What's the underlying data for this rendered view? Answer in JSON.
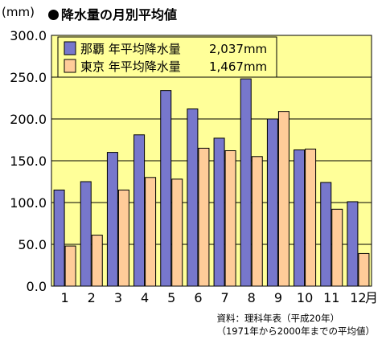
{
  "header": {
    "unit": "(mm)",
    "title": "降水量の月別平均値"
  },
  "chart_data": {
    "type": "bar",
    "categories": [
      "1",
      "2",
      "3",
      "4",
      "5",
      "6",
      "7",
      "8",
      "9",
      "10",
      "11",
      "12"
    ],
    "x_unit": "月",
    "series": [
      {
        "name": "那覇 年平均降水量",
        "total": "2,037mm",
        "color": "#7777cc",
        "values": [
          115,
          125,
          160,
          181,
          234,
          212,
          177,
          248,
          200,
          163,
          124,
          101
        ]
      },
      {
        "name": "東京 年平均降水量",
        "total": "1,467mm",
        "color": "#ffcc99",
        "values": [
          48,
          61,
          115,
          130,
          128,
          165,
          162,
          155,
          209,
          164,
          92,
          39
        ]
      }
    ],
    "ylim": [
      0,
      300
    ],
    "yticks": [
      "0.0",
      "50.0",
      "100.0",
      "150.0",
      "200.0",
      "250.0",
      "300.0"
    ],
    "plot_background": "#ffff99",
    "grid": "horizontal",
    "legend_position": "top-left"
  },
  "source": {
    "line1": "資料：理科年表（平成20年）",
    "line2": "（1971年から2000年までの平均値）"
  }
}
